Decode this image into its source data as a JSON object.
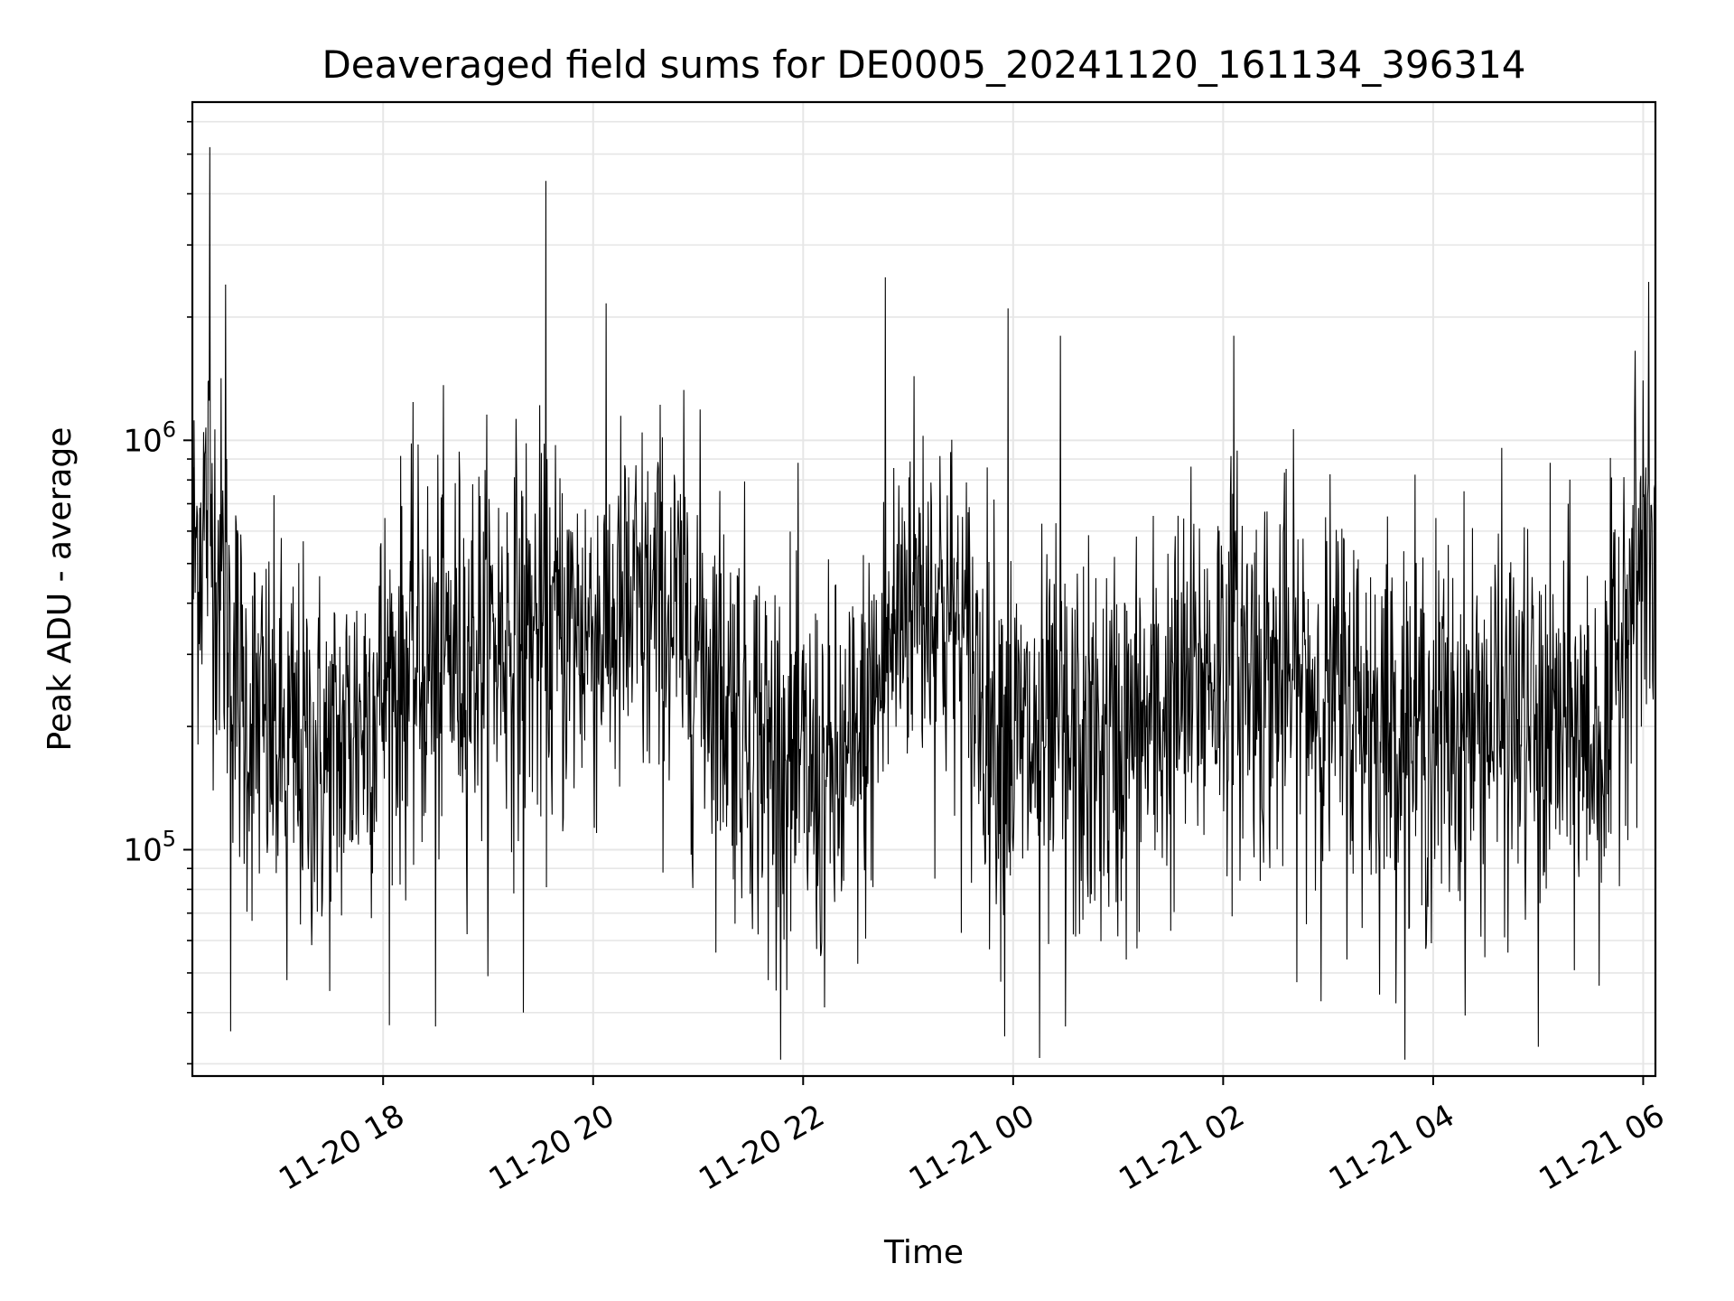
{
  "chart_data": {
    "type": "line",
    "title": "Deaveraged field sums for DE0005_20241120_161134_396314",
    "xlabel": "Time",
    "ylabel": "Peak ADU - average",
    "x_tick_labels": [
      "11-20 18",
      "11-20 20",
      "11-20 22",
      "11-21 00",
      "11-21 02",
      "11-21 04",
      "11-21 06"
    ],
    "y_tick_labels": [
      {
        "base": "10",
        "exp": "5"
      },
      {
        "base": "10",
        "exp": "6"
      }
    ],
    "xlim": [
      "2024-11-20 16:11",
      "2024-11-21 06:07"
    ],
    "x_ticks": [
      "2024-11-20 18:00",
      "2024-11-20 20:00",
      "2024-11-20 22:00",
      "2024-11-21 00:00",
      "2024-11-21 02:00",
      "2024-11-21 04:00",
      "2024-11-21 06:00"
    ],
    "yscale": "log",
    "ylim": [
      28000,
      6700000
    ],
    "y_major_ticks": [
      100000,
      1000000
    ],
    "y_minor_ticks": [
      30000,
      40000,
      50000,
      60000,
      70000,
      80000,
      90000,
      200000,
      300000,
      400000,
      500000,
      600000,
      700000,
      800000,
      900000,
      2000000,
      3000000,
      4000000,
      5000000,
      6000000
    ],
    "grid": true,
    "line_color": "#000000",
    "grid_color": "#e6e6e6",
    "series": [
      {
        "x": [
          "2024-11-20 16:11",
          "2024-11-20 16:20",
          "2024-11-20 16:30",
          "2024-11-20 16:40",
          "2024-11-20 16:50",
          "2024-11-20 17:00",
          "2024-11-20 17:15",
          "2024-11-20 17:30",
          "2024-11-20 17:45",
          "2024-11-20 18:00",
          "2024-11-20 18:20",
          "2024-11-20 18:40",
          "2024-11-20 19:00",
          "2024-11-20 19:20",
          "2024-11-20 19:40",
          "2024-11-20 20:00",
          "2024-11-20 20:20",
          "2024-11-20 20:40",
          "2024-11-20 21:00",
          "2024-11-20 21:20",
          "2024-11-20 21:40",
          "2024-11-20 22:00",
          "2024-11-20 22:15",
          "2024-11-20 22:30",
          "2024-11-20 22:45",
          "2024-11-20 23:00",
          "2024-11-20 23:20",
          "2024-11-20 23:40",
          "2024-11-21 00:00",
          "2024-11-21 00:20",
          "2024-11-21 00:40",
          "2024-11-21 01:00",
          "2024-11-21 01:20",
          "2024-11-21 01:40",
          "2024-11-21 02:00",
          "2024-11-21 02:20",
          "2024-11-21 02:40",
          "2024-11-21 03:00",
          "2024-11-21 03:20",
          "2024-11-21 03:40",
          "2024-11-21 04:00",
          "2024-11-21 04:20",
          "2024-11-21 04:40",
          "2024-11-21 05:00",
          "2024-11-21 05:20",
          "2024-11-21 05:40",
          "2024-11-21 05:50",
          "2024-11-21 06:07"
        ],
        "y": [
          500000,
          700000,
          400000,
          220000,
          200000,
          180000,
          170000,
          160000,
          200000,
          250000,
          280000,
          300000,
          320000,
          340000,
          330000,
          350000,
          360000,
          380000,
          320000,
          230000,
          180000,
          150000,
          140000,
          160000,
          260000,
          450000,
          400000,
          250000,
          180000,
          170000,
          170000,
          180000,
          200000,
          240000,
          300000,
          270000,
          250000,
          240000,
          220000,
          200000,
          190000,
          200000,
          210000,
          200000,
          190000,
          180000,
          450000,
          500000
        ]
      }
    ],
    "peaks": [
      {
        "x": "2024-11-20 16:21",
        "y": 5200000
      },
      {
        "x": "2024-11-20 16:30",
        "y": 2400000
      },
      {
        "x": "2024-11-20 19:33",
        "y": 4300000
      },
      {
        "x": "2024-11-20 22:47",
        "y": 2500000
      },
      {
        "x": "2024-11-20 23:57",
        "y": 2100000
      },
      {
        "x": "2024-11-21 00:27",
        "y": 1800000
      },
      {
        "x": "2024-11-21 02:06",
        "y": 1800000
      },
      {
        "x": "2024-11-21 06:00",
        "y": 1400000
      }
    ],
    "troughs": [
      {
        "x": "2024-11-20 16:33",
        "y": 36000
      },
      {
        "x": "2024-11-20 17:05",
        "y": 48000
      },
      {
        "x": "2024-11-20 18:30",
        "y": 37000
      },
      {
        "x": "2024-11-20 19:20",
        "y": 40000
      },
      {
        "x": "2024-11-20 21:40",
        "y": 48000
      },
      {
        "x": "2024-11-20 22:10",
        "y": 55000
      },
      {
        "x": "2024-11-20 23:55",
        "y": 35000
      },
      {
        "x": "2024-11-21 00:15",
        "y": 31000
      },
      {
        "x": "2024-11-21 00:30",
        "y": 37000
      },
      {
        "x": "2024-11-21 05:00",
        "y": 33000
      }
    ]
  }
}
